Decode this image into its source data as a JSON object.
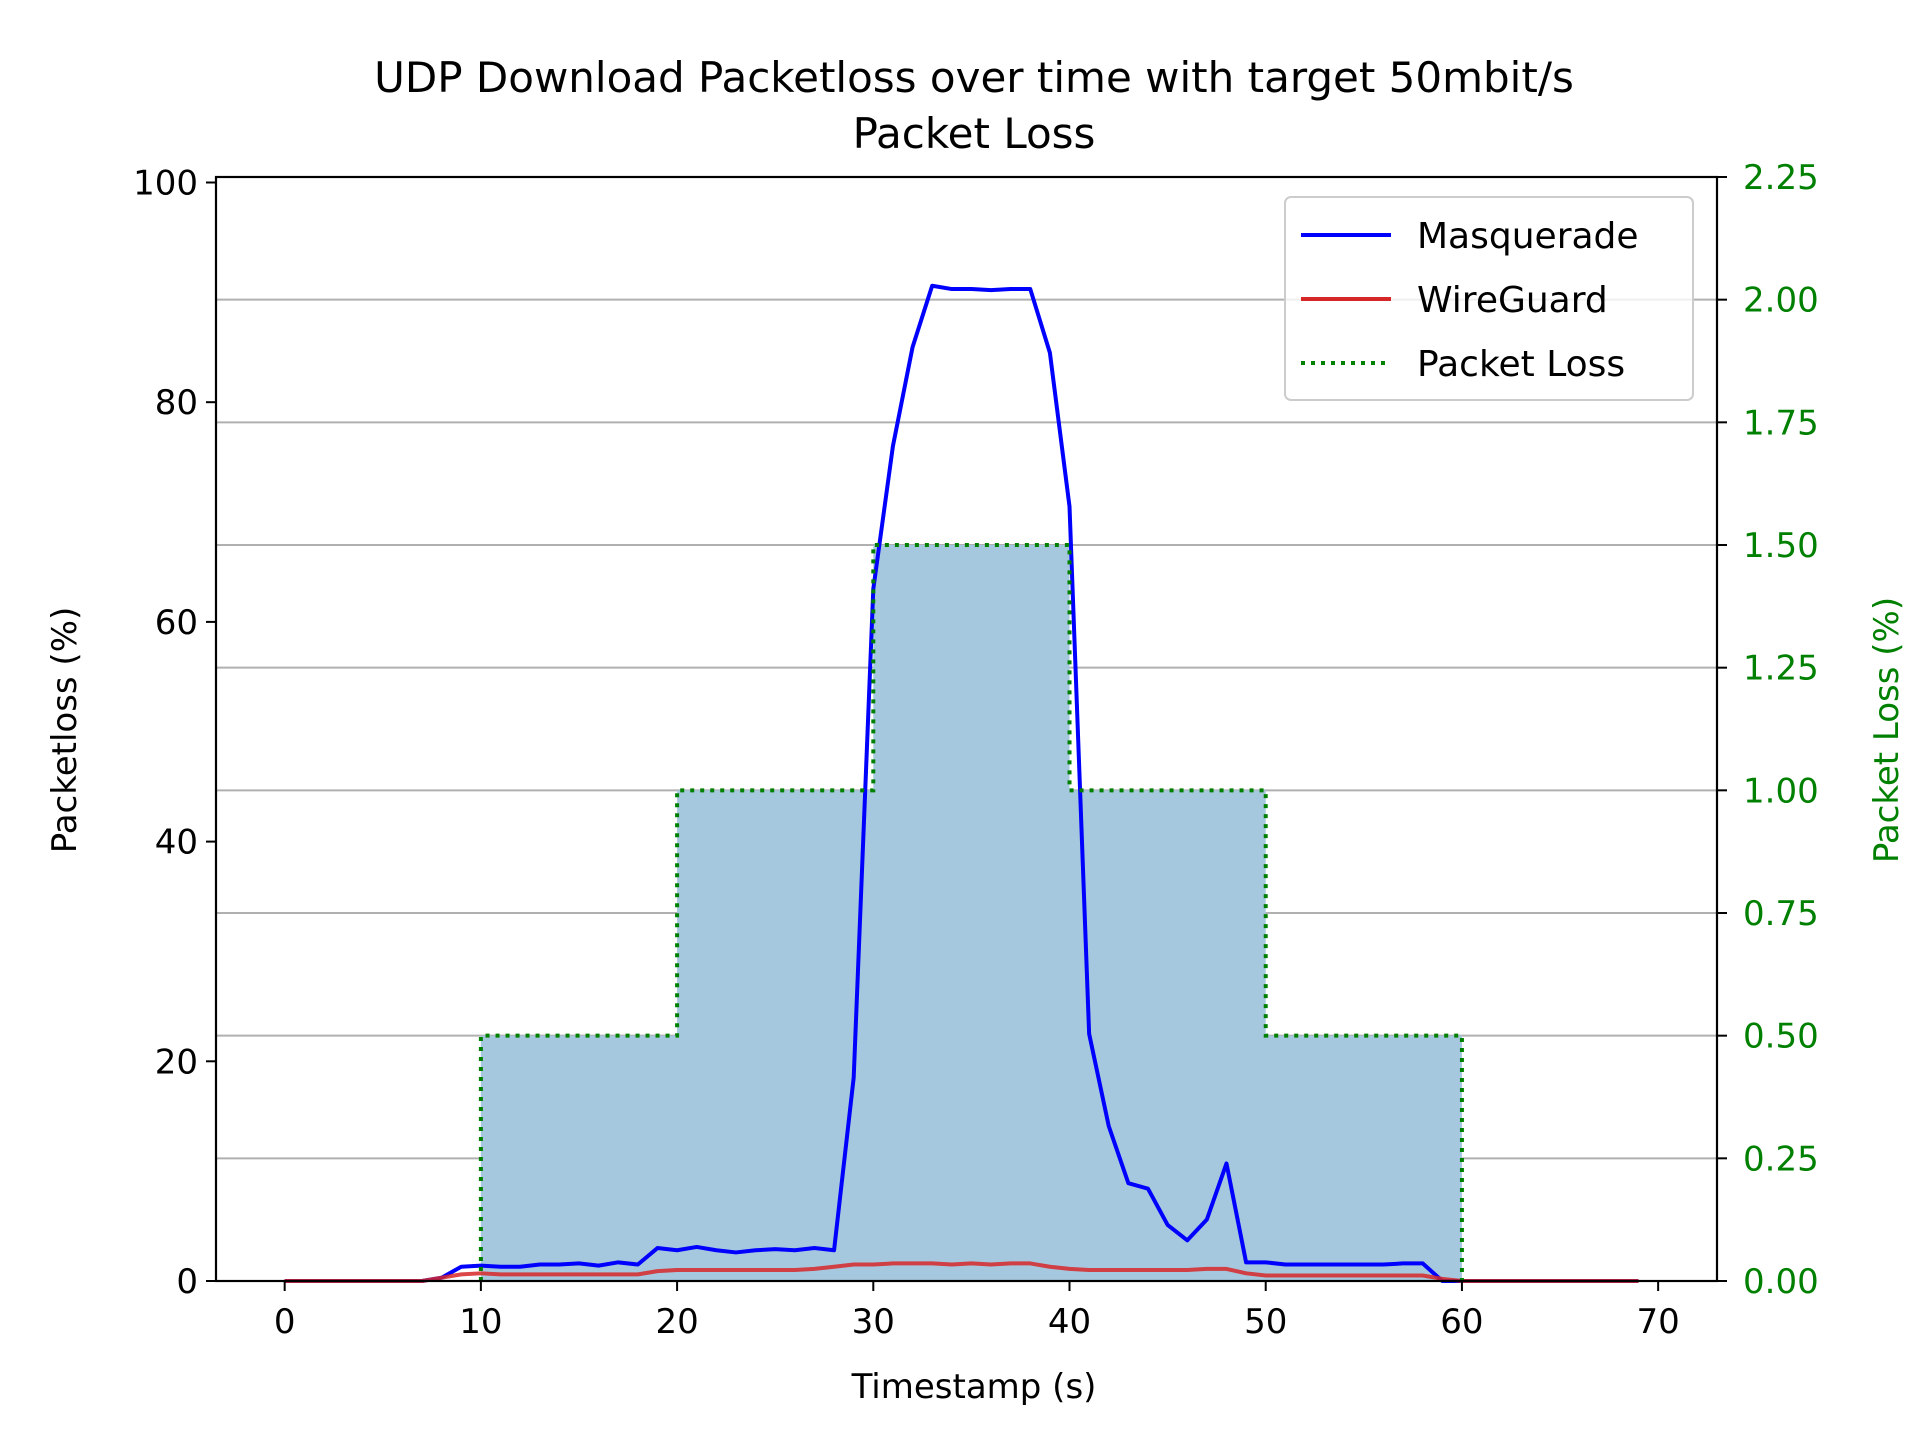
{
  "chart_data": {
    "type": "line",
    "title": "UDP Download Packetloss over time with target 50mbit/s",
    "subtitle": "Packet Loss",
    "xlabel": "Timestamp (s)",
    "ylabel": "Packetloss (%)",
    "y2label": "Packet Loss (%)",
    "xlim": [
      -3.5,
      73
    ],
    "ylim": [
      0,
      100.5
    ],
    "y2lim": [
      0,
      2.25
    ],
    "x_ticks": [
      "0",
      "10",
      "20",
      "30",
      "40",
      "50",
      "60",
      "70"
    ],
    "y_ticks": [
      "0",
      "20",
      "40",
      "60",
      "80",
      "100"
    ],
    "y2_ticks": [
      "0.00",
      "0.25",
      "0.50",
      "0.75",
      "1.00",
      "1.25",
      "1.50",
      "1.75",
      "2.00",
      "2.25"
    ],
    "grid": "horizontal, right axis",
    "legend_position": "top-right",
    "series": [
      {
        "name": "Masquerade",
        "axis": "left",
        "style": "solid",
        "color": "#0000ff",
        "x": [
          0,
          1,
          2,
          3,
          4,
          5,
          6,
          7,
          8,
          9,
          10,
          11,
          12,
          13,
          14,
          15,
          16,
          17,
          18,
          19,
          20,
          21,
          22,
          23,
          24,
          25,
          26,
          27,
          28,
          29,
          30,
          31,
          32,
          33,
          34,
          35,
          36,
          37,
          38,
          39,
          40,
          41,
          42,
          43,
          44,
          45,
          46,
          47,
          48,
          49,
          50,
          51,
          52,
          53,
          54,
          55,
          56,
          57,
          58,
          59,
          60,
          61,
          62,
          63,
          64,
          65,
          66,
          67,
          68,
          69
        ],
        "values": [
          0,
          0,
          0,
          0,
          0,
          0,
          0,
          0,
          0.3,
          1.3,
          1.4,
          1.3,
          1.3,
          1.5,
          1.5,
          1.6,
          1.4,
          1.7,
          1.5,
          3.0,
          2.8,
          3.1,
          2.8,
          2.6,
          2.8,
          2.9,
          2.8,
          3.0,
          2.8,
          18.5,
          63,
          76,
          85,
          90.6,
          90.3,
          90.3,
          90.2,
          90.3,
          90.3,
          84.5,
          70.5,
          22.5,
          14.1,
          8.9,
          8.4,
          5.1,
          3.7,
          5.6,
          10.7,
          1.7,
          1.7,
          1.5,
          1.5,
          1.5,
          1.5,
          1.5,
          1.5,
          1.6,
          1.6,
          0,
          0,
          0,
          0,
          0,
          0,
          0,
          0,
          0,
          0,
          0
        ]
      },
      {
        "name": "WireGuard",
        "axis": "left",
        "style": "solid",
        "color": "#d62728",
        "x": [
          0,
          1,
          2,
          3,
          4,
          5,
          6,
          7,
          8,
          9,
          10,
          11,
          12,
          13,
          14,
          15,
          16,
          17,
          18,
          19,
          20,
          21,
          22,
          23,
          24,
          25,
          26,
          27,
          28,
          29,
          30,
          31,
          32,
          33,
          34,
          35,
          36,
          37,
          38,
          39,
          40,
          41,
          42,
          43,
          44,
          45,
          46,
          47,
          48,
          49,
          50,
          51,
          52,
          53,
          54,
          55,
          56,
          57,
          58,
          59,
          60,
          61,
          62,
          63,
          64,
          65,
          66,
          67,
          68,
          69
        ],
        "values": [
          0,
          0,
          0,
          0,
          0,
          0,
          0,
          0,
          0.3,
          0.6,
          0.7,
          0.6,
          0.6,
          0.6,
          0.6,
          0.6,
          0.6,
          0.6,
          0.6,
          0.9,
          1.0,
          1.0,
          1.0,
          1.0,
          1.0,
          1.0,
          1.0,
          1.1,
          1.3,
          1.5,
          1.5,
          1.6,
          1.6,
          1.6,
          1.5,
          1.6,
          1.5,
          1.6,
          1.6,
          1.3,
          1.1,
          1.0,
          1.0,
          1.0,
          1.0,
          1.0,
          1.0,
          1.1,
          1.1,
          0.7,
          0.5,
          0.5,
          0.5,
          0.5,
          0.5,
          0.5,
          0.5,
          0.5,
          0.5,
          0.2,
          0,
          0,
          0,
          0,
          0,
          0,
          0,
          0,
          0,
          0
        ]
      },
      {
        "name": "Packet Loss",
        "axis": "right",
        "style": "dotted step",
        "color": "#008000",
        "fill": "#a6c8df",
        "x": [
          10,
          20,
          30,
          40,
          50,
          60
        ],
        "values": [
          0.5,
          1.0,
          1.5,
          1.0,
          0.5,
          0
        ]
      }
    ]
  }
}
